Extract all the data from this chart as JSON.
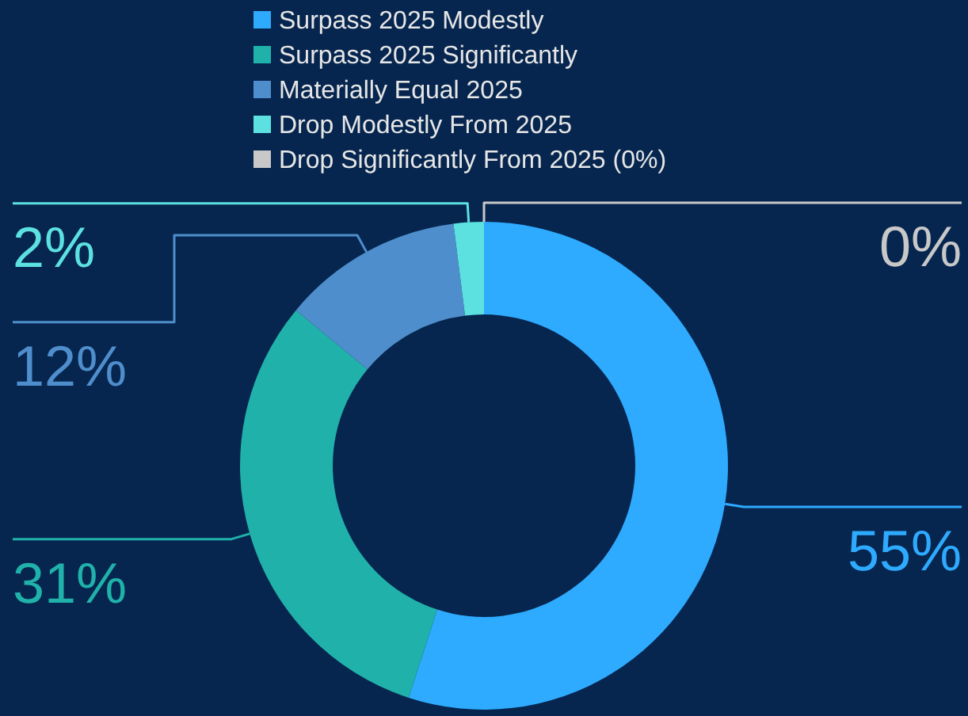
{
  "chart_data": {
    "type": "donut",
    "categories": [
      "Surpass 2025 Modestly",
      "Surpass 2025 Significantly",
      "Materially Equal 2025",
      "Drop Modestly From 2025",
      "Drop Significantly From 2025 (0%)"
    ],
    "values": [
      55,
      31,
      12,
      2,
      0
    ],
    "colors": [
      "#2eaaff",
      "#20b2aa",
      "#4f8ecc",
      "#5ce0e0",
      "#c8c8c8"
    ],
    "value_labels": [
      "55%",
      "31%",
      "12%",
      "2%",
      "0%"
    ],
    "legend": "top"
  }
}
